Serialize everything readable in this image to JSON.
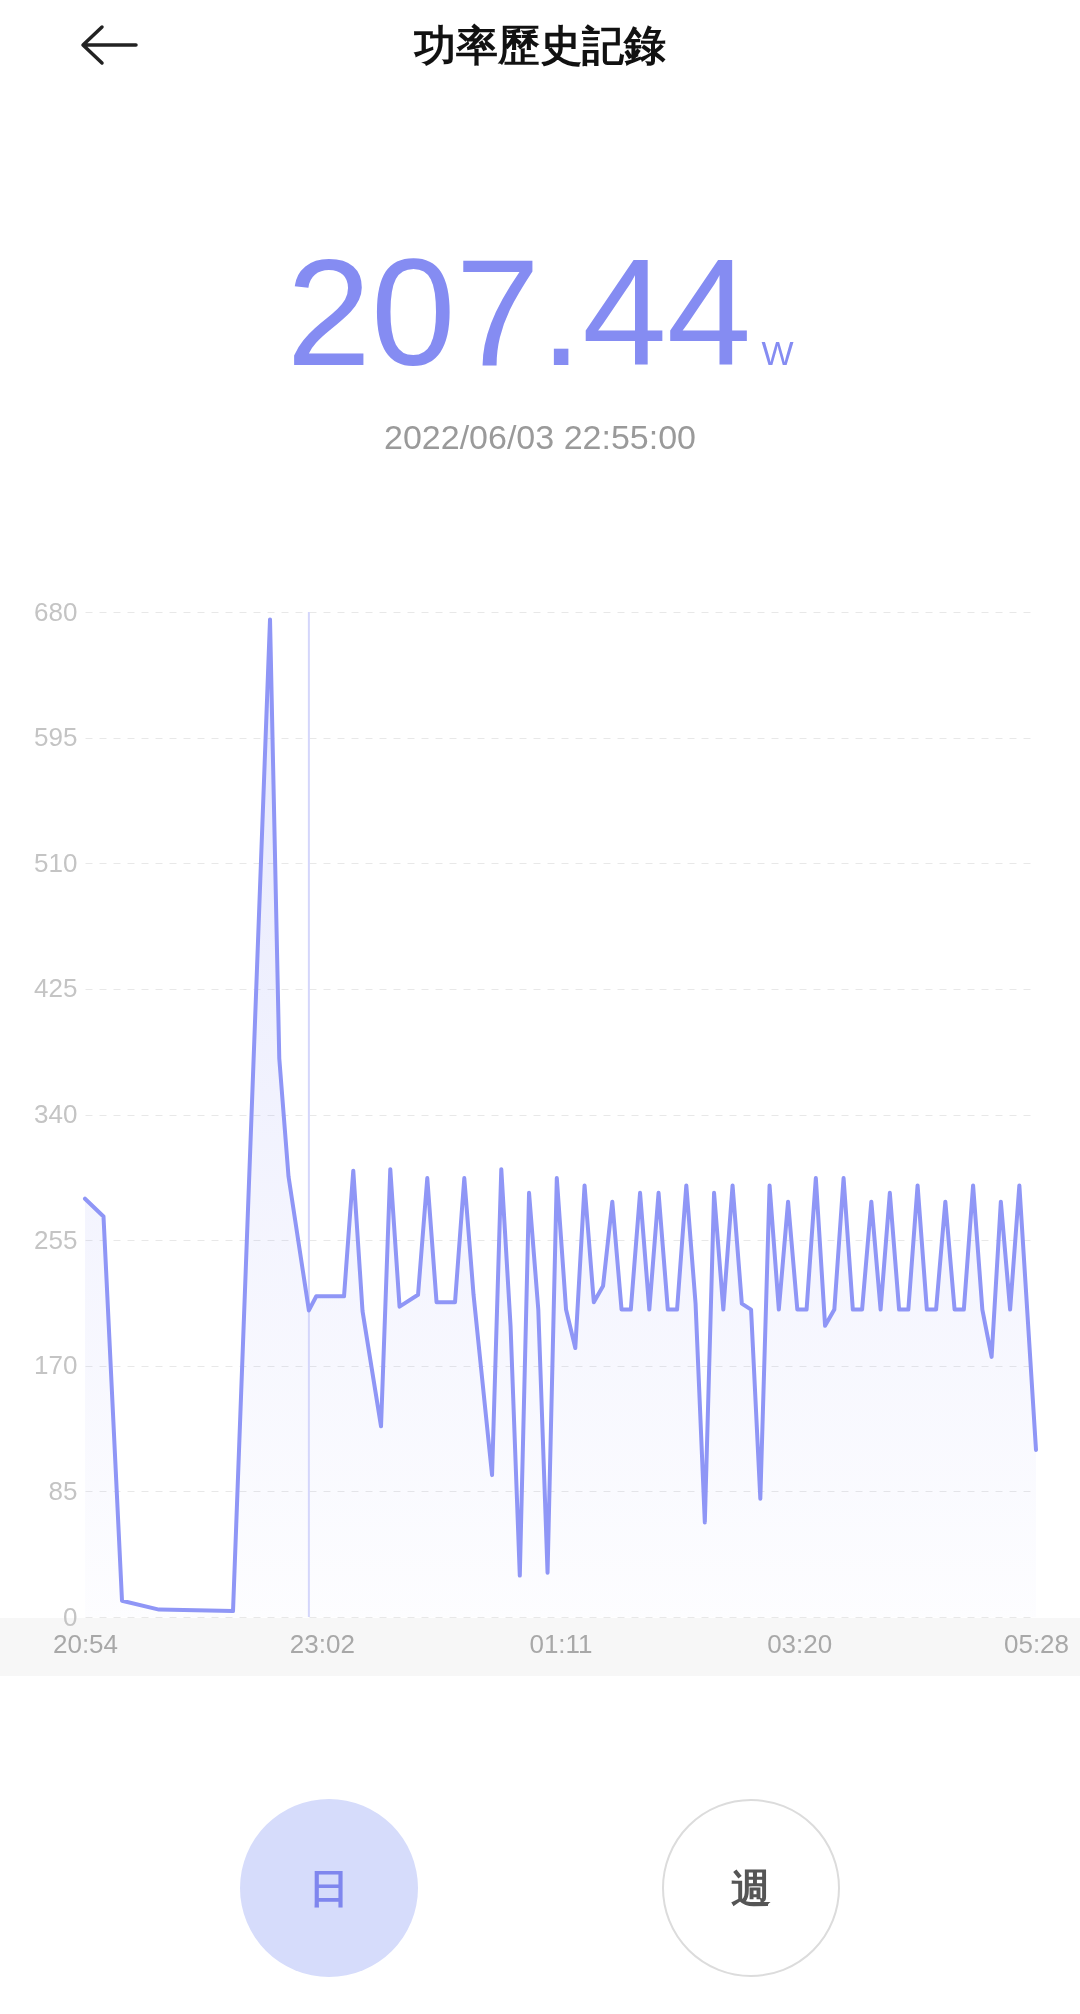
{
  "chart_data": {
    "type": "area",
    "title": "功率歷史記錄",
    "annotations": [
      "207.44",
      "W",
      "2022/06/03 22:55:00",
      "日",
      "週"
    ],
    "x": [
      "2022-06-03T20:54",
      "2022-06-03T21:04",
      "2022-06-03T21:14",
      "2022-06-03T21:34",
      "2022-06-03T22:14",
      "2022-06-03T22:34",
      "2022-06-03T22:39",
      "2022-06-03T22:44",
      "2022-06-03T22:55",
      "2022-06-03T22:59",
      "2022-06-03T23:04",
      "2022-06-03T23:09",
      "2022-06-03T23:14",
      "2022-06-03T23:19",
      "2022-06-03T23:24",
      "2022-06-03T23:34",
      "2022-06-03T23:39",
      "2022-06-03T23:44",
      "2022-06-03T23:54",
      "2022-06-03T23:59",
      "2022-06-04T00:04",
      "2022-06-04T00:14",
      "2022-06-04T00:19",
      "2022-06-04T00:24",
      "2022-06-04T00:34",
      "2022-06-04T00:39",
      "2022-06-04T00:44",
      "2022-06-04T00:49",
      "2022-06-04T00:54",
      "2022-06-04T00:59",
      "2022-06-04T01:04",
      "2022-06-04T01:09",
      "2022-06-04T01:14",
      "2022-06-04T01:19",
      "2022-06-04T01:24",
      "2022-06-04T01:29",
      "2022-06-04T01:34",
      "2022-06-04T01:39",
      "2022-06-04T01:44",
      "2022-06-04T01:49",
      "2022-06-04T01:54",
      "2022-06-04T01:59",
      "2022-06-04T02:04",
      "2022-06-04T02:09",
      "2022-06-04T02:14",
      "2022-06-04T02:19",
      "2022-06-04T02:24",
      "2022-06-04T02:29",
      "2022-06-04T02:34",
      "2022-06-04T02:39",
      "2022-06-04T02:44",
      "2022-06-04T02:49",
      "2022-06-04T02:54",
      "2022-06-04T02:59",
      "2022-06-04T03:04",
      "2022-06-04T03:09",
      "2022-06-04T03:14",
      "2022-06-04T03:19",
      "2022-06-04T03:24",
      "2022-06-04T03:29",
      "2022-06-04T03:34",
      "2022-06-04T03:39",
      "2022-06-04T03:44",
      "2022-06-04T03:49",
      "2022-06-04T03:54",
      "2022-06-04T03:59",
      "2022-06-04T04:04",
      "2022-06-04T04:09",
      "2022-06-04T04:14",
      "2022-06-04T04:19",
      "2022-06-04T04:24",
      "2022-06-04T04:29",
      "2022-06-04T04:34",
      "2022-06-04T04:39",
      "2022-06-04T04:44",
      "2022-06-04T04:49",
      "2022-06-04T04:54",
      "2022-06-04T04:59",
      "2022-06-04T05:04",
      "2022-06-04T05:09",
      "2022-06-04T05:14",
      "2022-06-04T05:19",
      "2022-06-04T05:28"
    ],
    "series": [
      {
        "color": "#8f96f6",
        "values": [
          283,
          271,
          11,
          5,
          4,
          675,
          378,
          298,
          207.44,
          217,
          217,
          217,
          217,
          302,
          207,
          129,
          303,
          210,
          218,
          297,
          213,
          213,
          297,
          218,
          96,
          303,
          197,
          28,
          287,
          208,
          30,
          297,
          208,
          182,
          292,
          213,
          224,
          281,
          208,
          208,
          287,
          208,
          287,
          208,
          208,
          292,
          212,
          64,
          287,
          208,
          292,
          212,
          208,
          80,
          292,
          208,
          281,
          208,
          208,
          297,
          197,
          208,
          297,
          208,
          208,
          281,
          208,
          287,
          208,
          208,
          292,
          208,
          208,
          281,
          208,
          208,
          292,
          208,
          176,
          281,
          208,
          292,
          113
        ]
      }
    ],
    "xlim": [
      "2022-06-03T20:54",
      "2022-06-04T05:28"
    ],
    "xticks": [
      {
        "value": "2022-06-03T20:54",
        "label": "20:54"
      },
      {
        "value": "2022-06-03T23:02",
        "label": "23:02"
      },
      {
        "value": "2022-06-04T01:11",
        "label": "01:11"
      },
      {
        "value": "2022-06-04T03:20",
        "label": "03:20"
      },
      {
        "value": "2022-06-04T05:28",
        "label": "05:28"
      }
    ],
    "ylim": [
      0,
      680
    ],
    "yticks": [
      0,
      85,
      170,
      255,
      340,
      425,
      510,
      595,
      680
    ],
    "ref_lines": [
      {
        "axis": "x",
        "value": "2022-06-03T22:55",
        "color": "#d4d6fb"
      }
    ],
    "grid": "y",
    "marker": "none",
    "line_style": "solid"
  }
}
